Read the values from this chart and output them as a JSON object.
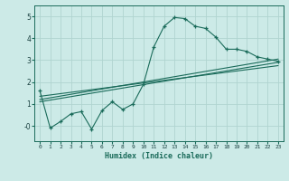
{
  "title": "",
  "xlabel": "Humidex (Indice chaleur)",
  "ylabel": "",
  "bg_color": "#cceae7",
  "line_color": "#1a6b5a",
  "grid_color": "#b0d4d0",
  "xlim": [
    -0.5,
    23.5
  ],
  "ylim": [
    -0.7,
    5.5
  ],
  "yticks": [
    0,
    1,
    2,
    3,
    4,
    5
  ],
  "ytick_labels": [
    "-0",
    "1",
    "2",
    "3",
    "4",
    "5"
  ],
  "xticks": [
    0,
    1,
    2,
    3,
    4,
    5,
    6,
    7,
    8,
    9,
    10,
    11,
    12,
    13,
    14,
    15,
    16,
    17,
    18,
    19,
    20,
    21,
    22,
    23
  ],
  "main_x": [
    0,
    1,
    2,
    3,
    4,
    5,
    6,
    7,
    8,
    9,
    10,
    11,
    12,
    13,
    14,
    15,
    16,
    17,
    18,
    19,
    20,
    21,
    22,
    23
  ],
  "main_y": [
    1.6,
    -0.1,
    0.2,
    0.55,
    0.65,
    -0.15,
    0.7,
    1.1,
    0.75,
    1.0,
    1.9,
    3.6,
    4.55,
    4.95,
    4.9,
    4.55,
    4.45,
    4.05,
    3.5,
    3.5,
    3.4,
    3.15,
    3.05,
    2.95
  ],
  "line1_x": [
    0,
    23
  ],
  "line1_y": [
    1.35,
    2.75
  ],
  "line2_x": [
    0,
    23
  ],
  "line2_y": [
    1.2,
    3.05
  ],
  "line3_x": [
    0,
    23
  ],
  "line3_y": [
    1.1,
    2.9
  ]
}
